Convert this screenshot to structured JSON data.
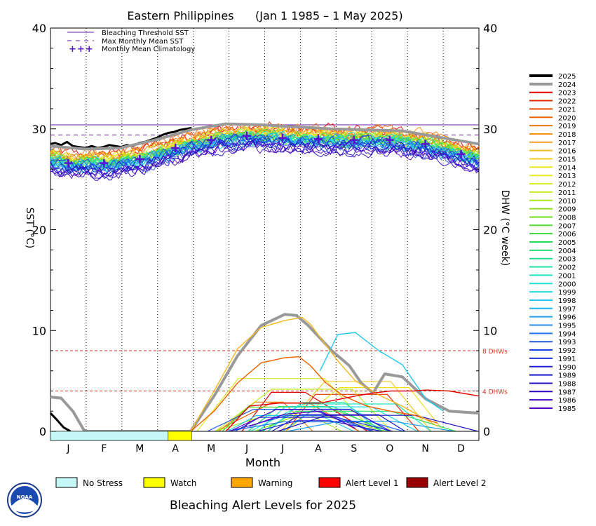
{
  "chart_data": {
    "type": "line",
    "title": "Eastern Philippines      (Jan 1 1985 – 1 May 2025)",
    "xlabel": "Month",
    "ylabel_left": "SST (°C)",
    "ylabel_right": "DHW (°C week)",
    "ylim": [
      0,
      40
    ],
    "yticks": [
      0,
      10,
      20,
      30,
      40
    ],
    "months": [
      "J",
      "F",
      "M",
      "A",
      "M",
      "J",
      "J",
      "A",
      "S",
      "O",
      "N",
      "D"
    ],
    "grid": "dotted vertical lines at month boundaries",
    "bleaching_threshold_sst": 30.4,
    "max_monthly_mean_sst": 29.4,
    "monthly_mean_climatology": [
      {
        "month": "J",
        "value": 26.6
      },
      {
        "month": "F",
        "value": 26.6
      },
      {
        "month": "M",
        "value": 27.0
      },
      {
        "month": "A",
        "value": 28.1
      },
      {
        "month": "M",
        "value": 28.9
      },
      {
        "month": "J",
        "value": 29.3
      },
      {
        "month": "J",
        "value": 29.1
      },
      {
        "month": "A",
        "value": 29.0
      },
      {
        "month": "S",
        "value": 28.9
      },
      {
        "month": "O",
        "value": 28.9
      },
      {
        "month": "N",
        "value": 28.5
      },
      {
        "month": "D",
        "value": 27.5
      }
    ],
    "dhw_reference_lines": [
      {
        "value": 8,
        "label": "8 DHWs"
      },
      {
        "value": 4,
        "label": "4 DHWs"
      }
    ],
    "years": [
      "2025",
      "2024",
      "2023",
      "2022",
      "2021",
      "2020",
      "2019",
      "2018",
      "2017",
      "2016",
      "2015",
      "2014",
      "2013",
      "2012",
      "2011",
      "2010",
      "2009",
      "2008",
      "2007",
      "2006",
      "2005",
      "2004",
      "2003",
      "2002",
      "2001",
      "2000",
      "1999",
      "1998",
      "1997",
      "1996",
      "1995",
      "1994",
      "1993",
      "1992",
      "1991",
      "1990",
      "1989",
      "1988",
      "1987",
      "1986",
      "1985"
    ],
    "year_colors": [
      "#000000",
      "#999999",
      "#e00000",
      "#e62a00",
      "#ea4a00",
      "#f06000",
      "#f07800",
      "#f59010",
      "#f5a020",
      "#f5b820",
      "#f5cc20",
      "#f0e020",
      "#e8ec20",
      "#d8ec20",
      "#c4ec20",
      "#a8e820",
      "#8ce020",
      "#70dc20",
      "#50d830",
      "#38d840",
      "#28dc58",
      "#20e070",
      "#20e090",
      "#20e4a8",
      "#20e4c0",
      "#20e0d8",
      "#20d8e8",
      "#20c8ec",
      "#20b4f0",
      "#20a0f0",
      "#2088f0",
      "#2070f0",
      "#2058e8",
      "#2040e0",
      "#2030d8",
      "#2020d0",
      "#1818c8",
      "#2010c0",
      "#3000c0",
      "#4000c0",
      "#5000c8"
    ],
    "series": [
      {
        "name": "2025",
        "kind": "SST",
        "x": [
          1,
          5,
          10,
          15,
          20,
          25,
          31,
          36,
          41,
          46,
          51,
          56,
          61,
          66,
          71,
          76,
          81,
          86,
          91,
          96,
          101,
          106,
          111,
          116,
          121
        ],
        "y": [
          28.5,
          28.6,
          28.4,
          28.7,
          28.3,
          28.2,
          28.1,
          28.3,
          28.1,
          28.2,
          28.4,
          28.3,
          28.2,
          28.4,
          28.3,
          28.6,
          28.7,
          28.9,
          29.1,
          29.4,
          29.6,
          29.7,
          29.9,
          30.0,
          30.1
        ]
      },
      {
        "name": "2024",
        "kind": "SST",
        "x": [
          1,
          30,
          60,
          90,
          120,
          150,
          180,
          210,
          240,
          270,
          300,
          330,
          365
        ],
        "y": [
          28.3,
          28.0,
          28.1,
          28.9,
          29.9,
          30.5,
          30.4,
          30.2,
          30.0,
          29.9,
          29.8,
          29.2,
          28.5
        ]
      },
      {
        "name": "2025",
        "kind": "DHW",
        "x": [
          1,
          6,
          12,
          18
        ],
        "y": [
          1.8,
          1.2,
          0.4,
          0
        ]
      },
      {
        "name": "2024",
        "kind": "DHW",
        "x": [
          1,
          10,
          20,
          30,
          120,
          140,
          160,
          180,
          200,
          210,
          220,
          240,
          255,
          265,
          275,
          285,
          300,
          320,
          340,
          365
        ],
        "y": [
          3.4,
          3.3,
          2.0,
          0,
          0,
          3.5,
          7.5,
          10.5,
          11.6,
          11.5,
          10.5,
          8.0,
          6.5,
          4.8,
          3.8,
          5.7,
          5.4,
          3.2,
          2.0,
          1.8
        ]
      },
      {
        "name": "1998",
        "kind": "DHW",
        "x": [
          230,
          245,
          260,
          280,
          300,
          320,
          335
        ],
        "y": [
          6.0,
          9.6,
          9.8,
          8.0,
          6.6,
          3.2,
          2.0
        ]
      },
      {
        "name": "2020",
        "kind": "DHW",
        "x": [
          120,
          140,
          160,
          180,
          200,
          212,
          222,
          235,
          250,
          270,
          290,
          310,
          330
        ],
        "y": [
          0,
          2.0,
          4.8,
          6.8,
          7.3,
          7.4,
          6.5,
          4.8,
          3.5,
          2.5,
          2.0,
          1.6,
          0.8
        ]
      },
      {
        "name": "2016",
        "kind": "DHW",
        "x": [
          120,
          140,
          160,
          180,
          200,
          215,
          222,
          232,
          245,
          260,
          280,
          300,
          330
        ],
        "y": [
          0,
          4.0,
          8.2,
          10.3,
          11.0,
          11.3,
          10.6,
          9.0,
          7.0,
          5.0,
          3.6,
          2.5,
          0.5
        ]
      },
      {
        "name": "2023",
        "kind": "DHW",
        "x": [
          150,
          170,
          195,
          230,
          260,
          275,
          290,
          310,
          320,
          340,
          365
        ],
        "y": [
          0,
          2.5,
          2.8,
          2.8,
          3.5,
          3.8,
          4.0,
          4.0,
          4.1,
          4.0,
          3.5
        ]
      },
      {
        "name": "1985",
        "kind": "DHW",
        "x": [
          170,
          200,
          230,
          248,
          260
        ],
        "y": [
          0.5,
          1.7,
          2.0,
          1.0,
          0.3
        ]
      }
    ]
  },
  "legend_top": {
    "threshold_label": "Bleaching Threshold SST",
    "mmm_label": "Max Monthly Mean SST",
    "clim_label": "Monthly Mean Climatology",
    "clim_marker": "+++",
    "threshold_color": "#6a1aa0",
    "mmm_color": "#6a1aa0",
    "clim_color": "#5a10d0"
  },
  "alert_levels": {
    "title": "Bleaching Alert Levels for 2025",
    "items": [
      {
        "label": "No Stress",
        "color": "#c6f7f7"
      },
      {
        "label": "Watch",
        "color": "#ffff00"
      },
      {
        "label": "Warning",
        "color": "#ffa500"
      },
      {
        "label": "Alert Level 1",
        "color": "#ff0000"
      },
      {
        "label": "Alert Level 2",
        "color": "#990000"
      }
    ],
    "status_bar": [
      {
        "from_day": 1,
        "to_day": 101,
        "level": "No Stress"
      },
      {
        "from_day": 101,
        "to_day": 121,
        "level": "Watch"
      }
    ]
  },
  "logo": {
    "text": "NOAA"
  }
}
